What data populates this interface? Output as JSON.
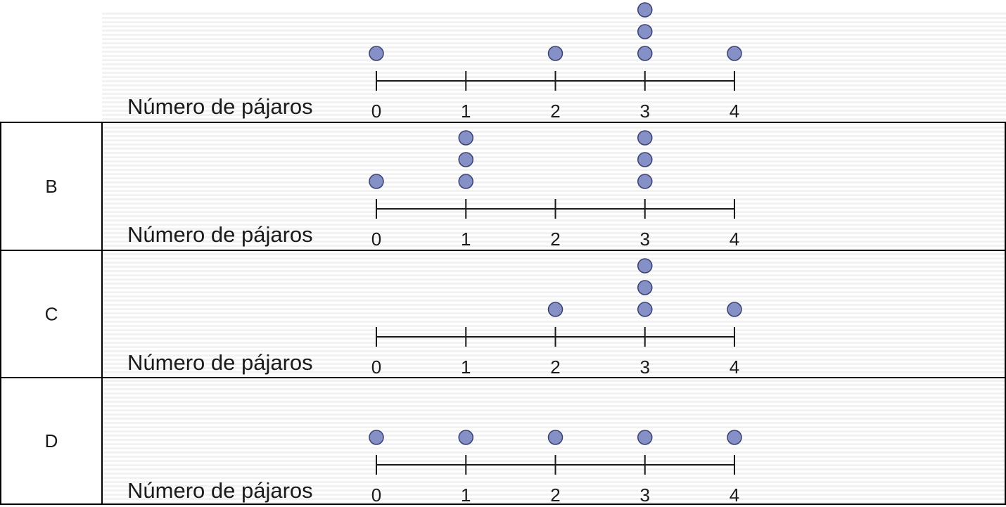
{
  "chart_data": [
    {
      "type": "dot_plot",
      "option_label": "",
      "xlabel": "Número de pájaros",
      "x_ticks": [
        0,
        1,
        2,
        3,
        4
      ],
      "x_range": [
        0,
        4
      ],
      "dots": [
        {
          "x": 0,
          "count": 1
        },
        {
          "x": 1,
          "count": 0
        },
        {
          "x": 2,
          "count": 1
        },
        {
          "x": 3,
          "count": 3
        },
        {
          "x": 4,
          "count": 1
        }
      ]
    },
    {
      "type": "dot_plot",
      "option_label": "B",
      "xlabel": "Número de pájaros",
      "x_ticks": [
        0,
        1,
        2,
        3,
        4
      ],
      "x_range": [
        0,
        4
      ],
      "dots": [
        {
          "x": 0,
          "count": 1
        },
        {
          "x": 1,
          "count": 3
        },
        {
          "x": 2,
          "count": 0
        },
        {
          "x": 3,
          "count": 3
        },
        {
          "x": 4,
          "count": 0
        }
      ]
    },
    {
      "type": "dot_plot",
      "option_label": "C",
      "xlabel": "Número de pájaros",
      "x_ticks": [
        0,
        1,
        2,
        3,
        4
      ],
      "x_range": [
        0,
        4
      ],
      "dots": [
        {
          "x": 0,
          "count": 0
        },
        {
          "x": 1,
          "count": 0
        },
        {
          "x": 2,
          "count": 1
        },
        {
          "x": 3,
          "count": 3
        },
        {
          "x": 4,
          "count": 1
        }
      ]
    },
    {
      "type": "dot_plot",
      "option_label": "D",
      "xlabel": "Número de pájaros",
      "x_ticks": [
        0,
        1,
        2,
        3,
        4
      ],
      "x_range": [
        0,
        4
      ],
      "dots": [
        {
          "x": 0,
          "count": 1
        },
        {
          "x": 1,
          "count": 1
        },
        {
          "x": 2,
          "count": 1
        },
        {
          "x": 3,
          "count": 1
        },
        {
          "x": 4,
          "count": 1
        }
      ]
    }
  ],
  "colors": {
    "dot_fill": "#8590c6",
    "dot_stroke": "#3a416e",
    "axis": "#1a1a1a",
    "text": "#1a1a1a",
    "stripe": "#f2f2f2",
    "border": "#000000"
  }
}
